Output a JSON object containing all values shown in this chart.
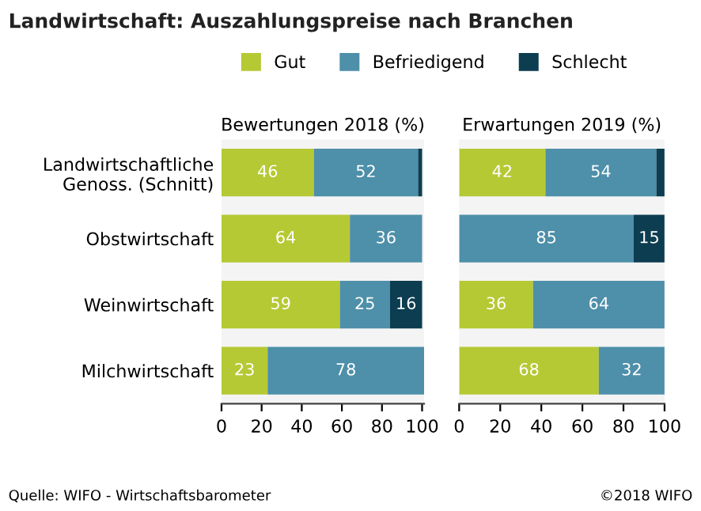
{
  "chart_data": [
    {
      "type": "bar",
      "orientation": "horizontal",
      "stacked": true,
      "title": "Landwirtschaft: Auszahlungspreise nach Branchen",
      "subtitle": "Bewertungen 2018 (%)",
      "categories": [
        "Landwirtschaftliche\nGenoss. (Schnitt)",
        "Obstwirtschaft",
        "Weinwirtschaft",
        "Milchwirtschaft"
      ],
      "series": [
        {
          "name": "Gut",
          "color": "#b5c934",
          "values": [
            46,
            64,
            59,
            23
          ],
          "value_labels": [
            "46",
            "64",
            "59",
            "23"
          ]
        },
        {
          "name": "Befriedigend",
          "color": "#4e8fa9",
          "values": [
            52,
            36,
            25,
            78
          ],
          "value_labels": [
            "52",
            "36",
            "25",
            "78"
          ]
        },
        {
          "name": "Schlecht",
          "color": "#0d3d50",
          "values": [
            2,
            0,
            16,
            0
          ],
          "value_labels": [
            null,
            null,
            "16",
            null
          ]
        }
      ],
      "xlim": [
        0,
        101
      ],
      "xticks": [
        0,
        20,
        40,
        60,
        80,
        100
      ],
      "legend": "top",
      "grid": false,
      "annotations": [
        "Quelle: WIFO - Wirtschaftsbarometer",
        "©2018 WIFO"
      ]
    },
    {
      "type": "bar",
      "orientation": "horizontal",
      "stacked": true,
      "subtitle": "Erwartungen 2019 (%)",
      "categories": [
        null,
        null,
        null,
        null
      ],
      "series": [
        {
          "color": "#b5c934",
          "values": [
            42,
            0,
            36,
            68
          ],
          "value_labels": [
            "42",
            null,
            "36",
            "68"
          ]
        },
        {
          "color": "#4e8fa9",
          "values": [
            54,
            85,
            64,
            32
          ],
          "value_labels": [
            "54",
            "85",
            "64",
            "32"
          ]
        },
        {
          "color": "#0d3d50",
          "values": [
            4,
            15,
            0,
            0
          ],
          "value_labels": [
            null,
            "15",
            null,
            null
          ]
        }
      ],
      "xlim": [
        0,
        100
      ],
      "xticks": [
        0,
        20,
        40,
        60,
        80,
        100
      ],
      "tick_labels": "x",
      "grid": false
    }
  ]
}
